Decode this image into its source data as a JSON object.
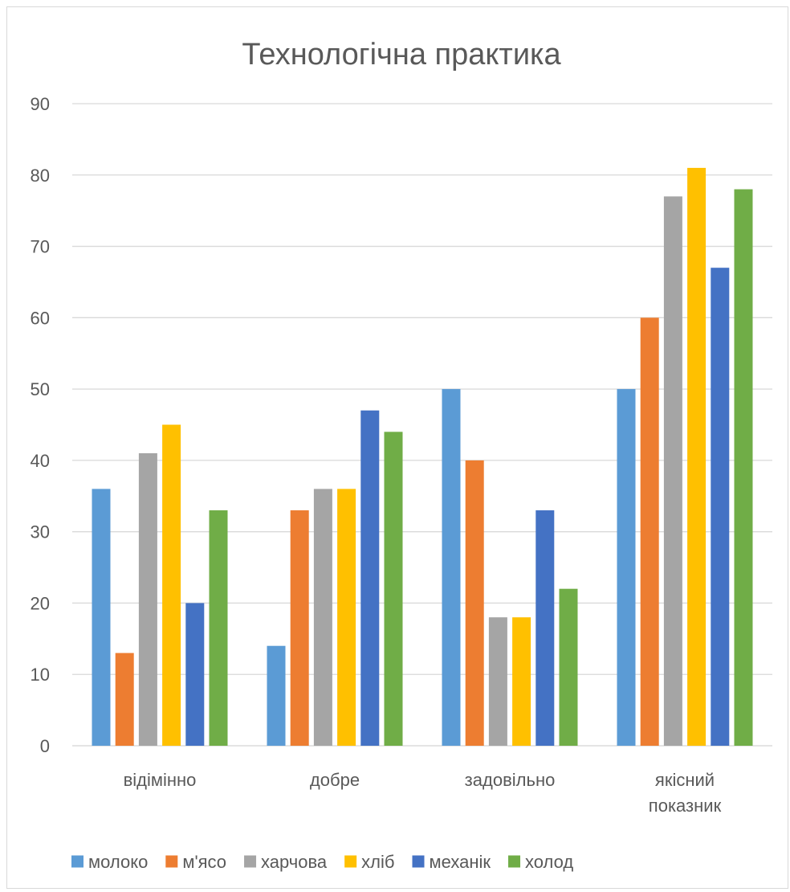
{
  "chart_data": {
    "type": "bar",
    "title": "Технологічна практика",
    "categories": [
      [
        "відімінно"
      ],
      [
        "добре"
      ],
      [
        "задовільно"
      ],
      [
        "якісний",
        "показник"
      ]
    ],
    "series": [
      {
        "name": "молоко",
        "color": "#5B9BD5",
        "values": [
          36,
          14,
          50,
          50
        ]
      },
      {
        "name": "м'ясо",
        "color": "#ED7D31",
        "values": [
          13,
          33,
          40,
          60
        ]
      },
      {
        "name": "харчова",
        "color": "#A5A5A5",
        "values": [
          41,
          36,
          18,
          77
        ]
      },
      {
        "name": "хліб",
        "color": "#FFC000",
        "values": [
          45,
          36,
          18,
          81
        ]
      },
      {
        "name": "механік",
        "color": "#4472C4",
        "values": [
          20,
          47,
          33,
          67
        ]
      },
      {
        "name": "холод",
        "color": "#70AD47",
        "values": [
          33,
          44,
          22,
          78
        ]
      }
    ],
    "ylim": [
      0,
      90
    ],
    "y_ticks": [
      "0",
      "10",
      "20",
      "30",
      "40",
      "50",
      "60",
      "70",
      "80",
      "90"
    ],
    "grid": true,
    "legend_position": "bottom",
    "gridline_color": "#D9D9D9"
  }
}
